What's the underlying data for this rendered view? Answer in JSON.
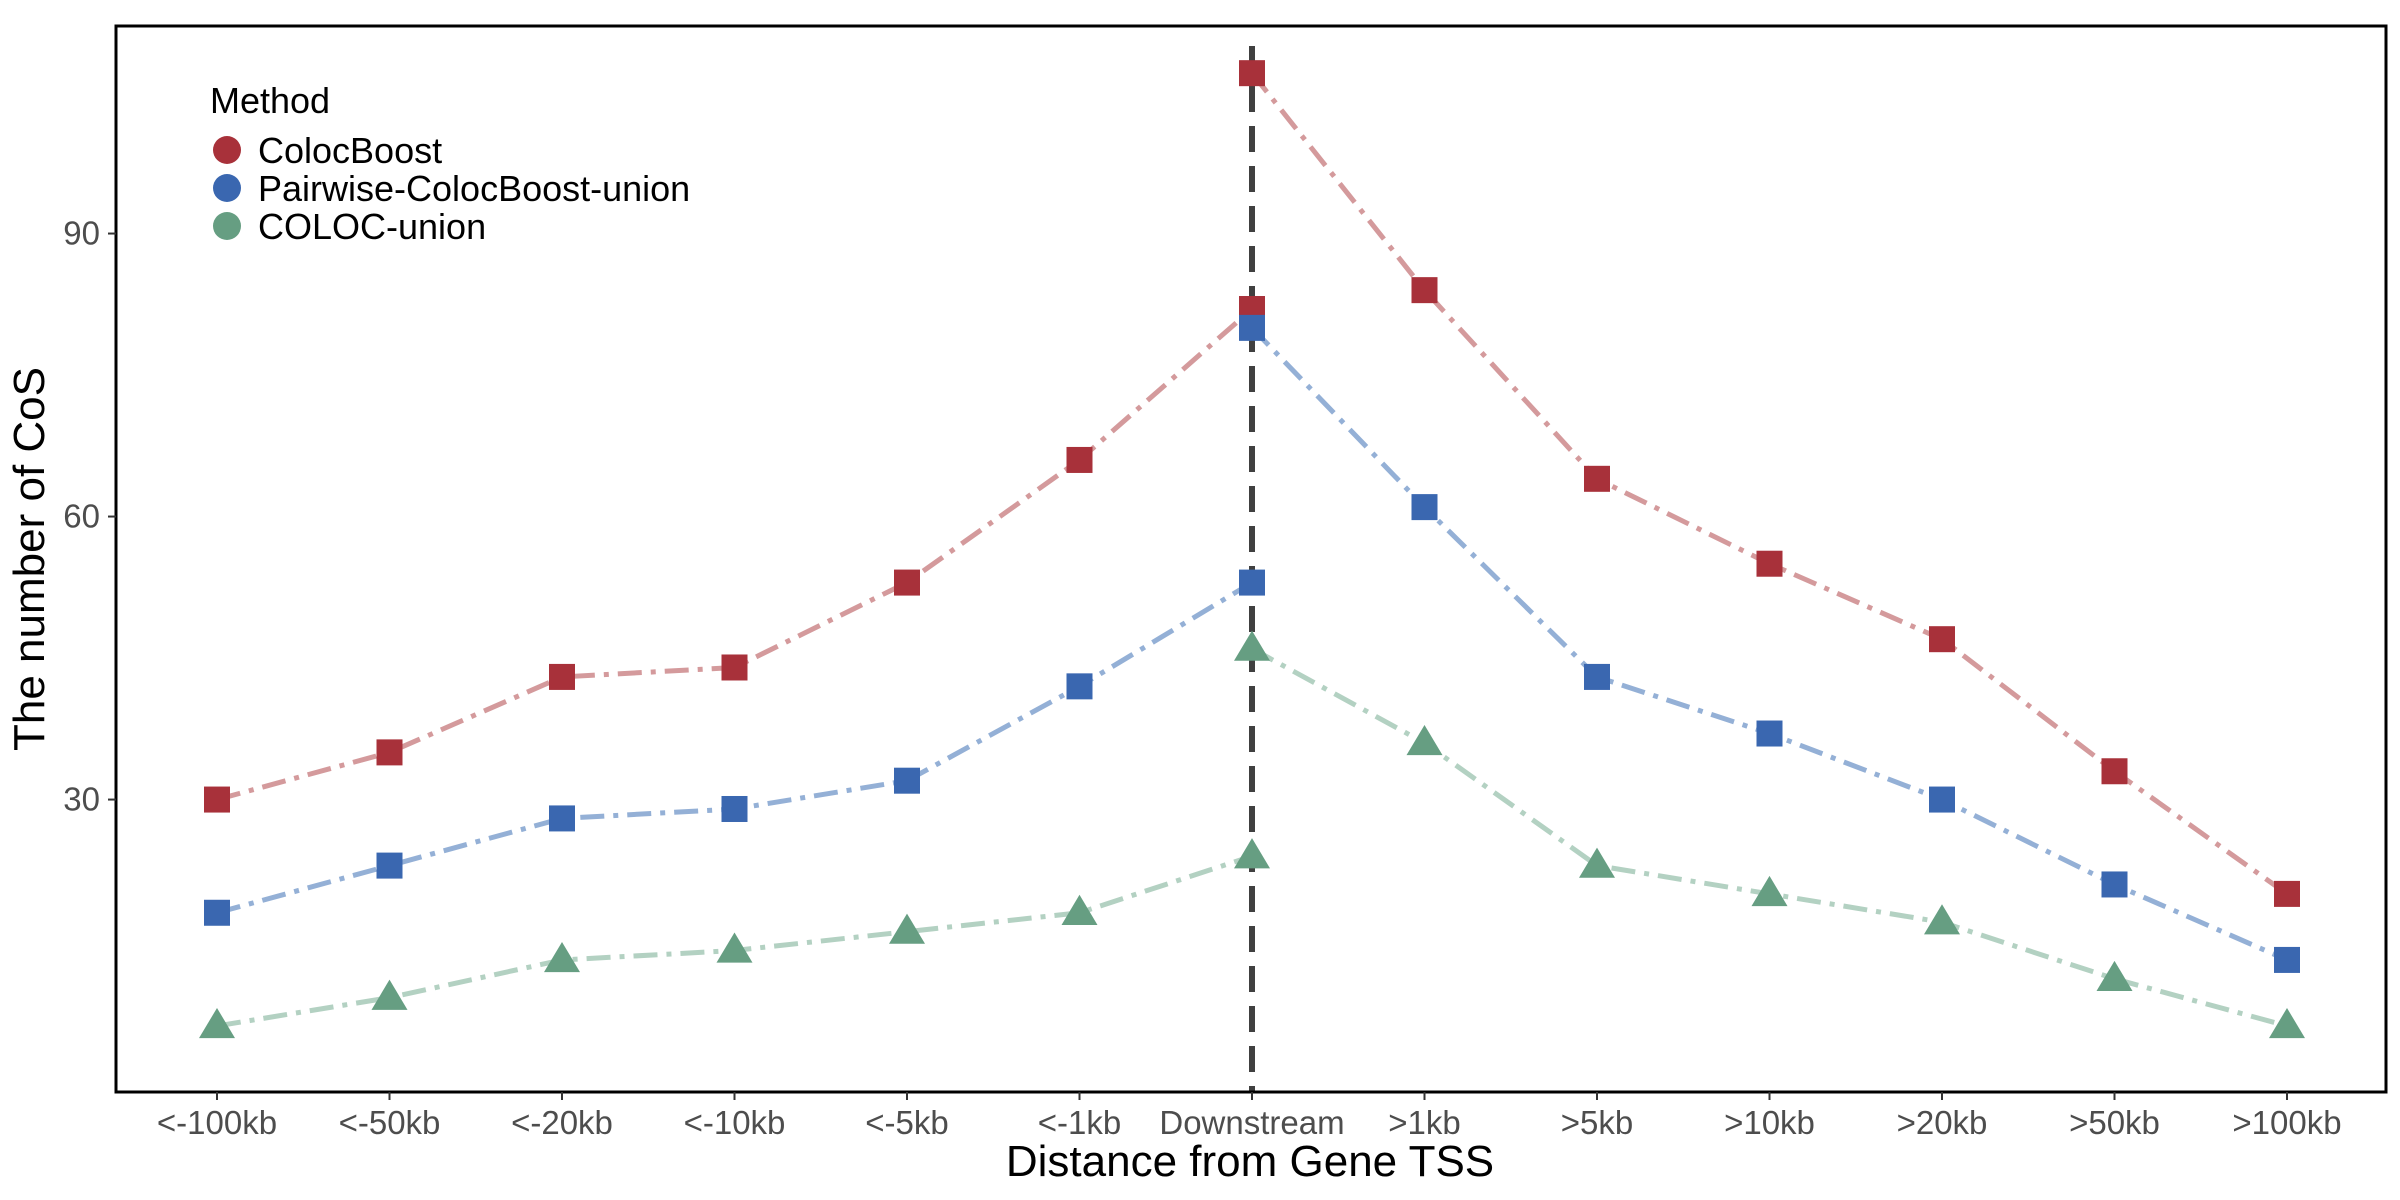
{
  "chart_data": {
    "type": "line",
    "xlabel": "Distance from Gene TSS",
    "ylabel": "The number of CoS",
    "ylim": [
      -1,
      112
    ],
    "yticks": [
      30,
      60,
      90
    ],
    "grid": false,
    "legend": {
      "title": "Method",
      "placement": "top-left"
    },
    "reference_line": {
      "orientation": "vertical",
      "at": "Downstream",
      "style": "dashed",
      "color": "#404040"
    },
    "categories": [
      {
        "label": "<-100kb"
      },
      {
        "label": "<-50kb"
      },
      {
        "label": "<-20kb"
      },
      {
        "label": "<-10kb"
      },
      {
        "label": "<-5kb"
      },
      {
        "label": "<-1kb"
      },
      {
        "label": "Downstream"
      },
      {
        "label": ">1kb"
      },
      {
        "label": ">5kb"
      },
      {
        "label": ">10kb"
      },
      {
        "label": ">20kb"
      },
      {
        "label": ">50kb"
      },
      {
        "label": ">100kb"
      }
    ],
    "series": [
      {
        "name": "ColocBoost",
        "color": "#a8313a",
        "line_color": "#d49a9c",
        "marker": "square",
        "upstream": [
          30,
          35,
          43,
          44,
          53,
          66,
          82
        ],
        "downstream": [
          107,
          84,
          64,
          55,
          47,
          33,
          20
        ]
      },
      {
        "name": "Pairwise-ColocBoost-union",
        "color": "#3a67b0",
        "line_color": "#94b0d6",
        "marker": "square",
        "upstream": [
          18,
          23,
          28,
          29,
          32,
          42,
          53
        ],
        "downstream": [
          80,
          61,
          43,
          37,
          30,
          21,
          13
        ]
      },
      {
        "name": "COLOC-union",
        "color": "#669e82",
        "line_color": "#b3d1c2",
        "marker": "triangle",
        "upstream": [
          6,
          9,
          13,
          14,
          16,
          18,
          24
        ],
        "downstream": [
          46,
          36,
          23,
          20,
          17,
          11,
          6
        ]
      }
    ]
  }
}
